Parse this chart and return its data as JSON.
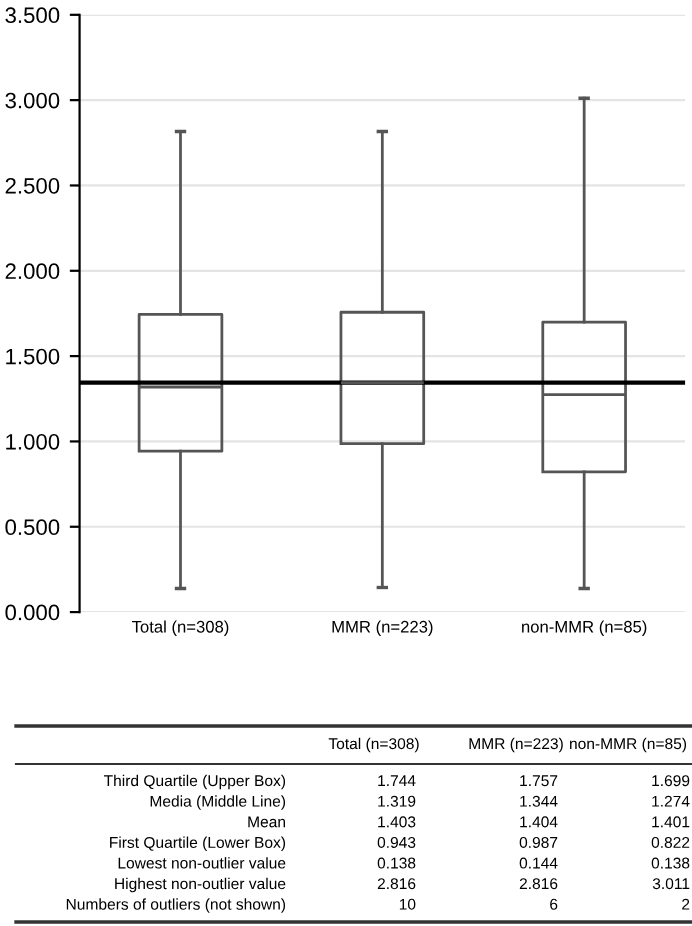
{
  "chart_data": [
    {
      "type": "box",
      "categories": [
        "Total (n=308)",
        "MMR (n=223)",
        "non-MMR (n=85)"
      ],
      "boxes": [
        {
          "low": 0.138,
          "q1": 0.943,
          "median": 1.319,
          "q3": 1.744,
          "high": 2.816
        },
        {
          "low": 0.144,
          "q1": 0.987,
          "median": 1.344,
          "q3": 1.757,
          "high": 2.816
        },
        {
          "low": 0.138,
          "q1": 0.822,
          "median": 1.274,
          "q3": 1.699,
          "high": 3.011
        }
      ],
      "ylim": [
        0,
        3.5
      ],
      "yticks": [
        {
          "value": 0,
          "label": "0.000"
        },
        {
          "value": 0.5,
          "label": "0.500"
        },
        {
          "value": 1,
          "label": "1.000"
        },
        {
          "value": 1.5,
          "label": "1.500"
        },
        {
          "value": 2,
          "label": "2.000"
        },
        {
          "value": 2.5,
          "label": "2.500"
        },
        {
          "value": 3,
          "label": "3.000"
        },
        {
          "value": 3.5,
          "label": "3.500"
        }
      ],
      "grid": "y",
      "ref_lines": [
        {
          "axis": "y",
          "value": 1.345,
          "color": "#000000"
        }
      ]
    },
    {
      "type": "other",
      "annotations": [
        "Total (n=308)",
        "MMR (n=223)",
        "non-MMR (n=85)",
        "Third Quartile (Upper Box)",
        "1.744",
        "1.757",
        "1.699",
        "Media (Middle Line)",
        "1.319",
        "1.344",
        "1.274",
        "Mean",
        "1.403",
        "1.404",
        "1.401",
        "First Quartile (Lower Box)",
        "0.943",
        "0.987",
        "0.822",
        "Lowest non-outlier value",
        "0.138",
        "0.144",
        "0.138",
        "Highest non-outlier value",
        "2.816",
        "2.816",
        "3.011",
        "Numbers of outliers (not shown)",
        "10",
        "6",
        "2"
      ]
    }
  ]
}
